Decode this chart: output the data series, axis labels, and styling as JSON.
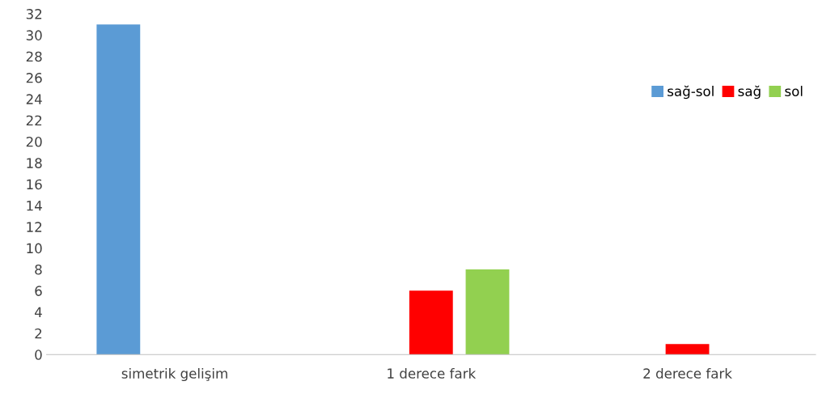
{
  "chart_data": {
    "type": "bar",
    "categories": [
      "simetrik gelişim",
      "1 derece fark",
      "2 derece fark"
    ],
    "series": [
      {
        "name": "sağ-sol",
        "color": "#5b9bd5",
        "values": [
          31,
          null,
          null
        ]
      },
      {
        "name": "sağ",
        "color": "#ff0000",
        "values": [
          null,
          6,
          1
        ]
      },
      {
        "name": "sol",
        "color": "#92d050",
        "values": [
          null,
          8,
          null
        ]
      }
    ],
    "ylim": [
      0,
      32
    ],
    "yticks": [
      0,
      2,
      4,
      6,
      8,
      10,
      12,
      14,
      16,
      18,
      20,
      22,
      24,
      26,
      28,
      30,
      32
    ],
    "grid": false,
    "legend": "right"
  }
}
